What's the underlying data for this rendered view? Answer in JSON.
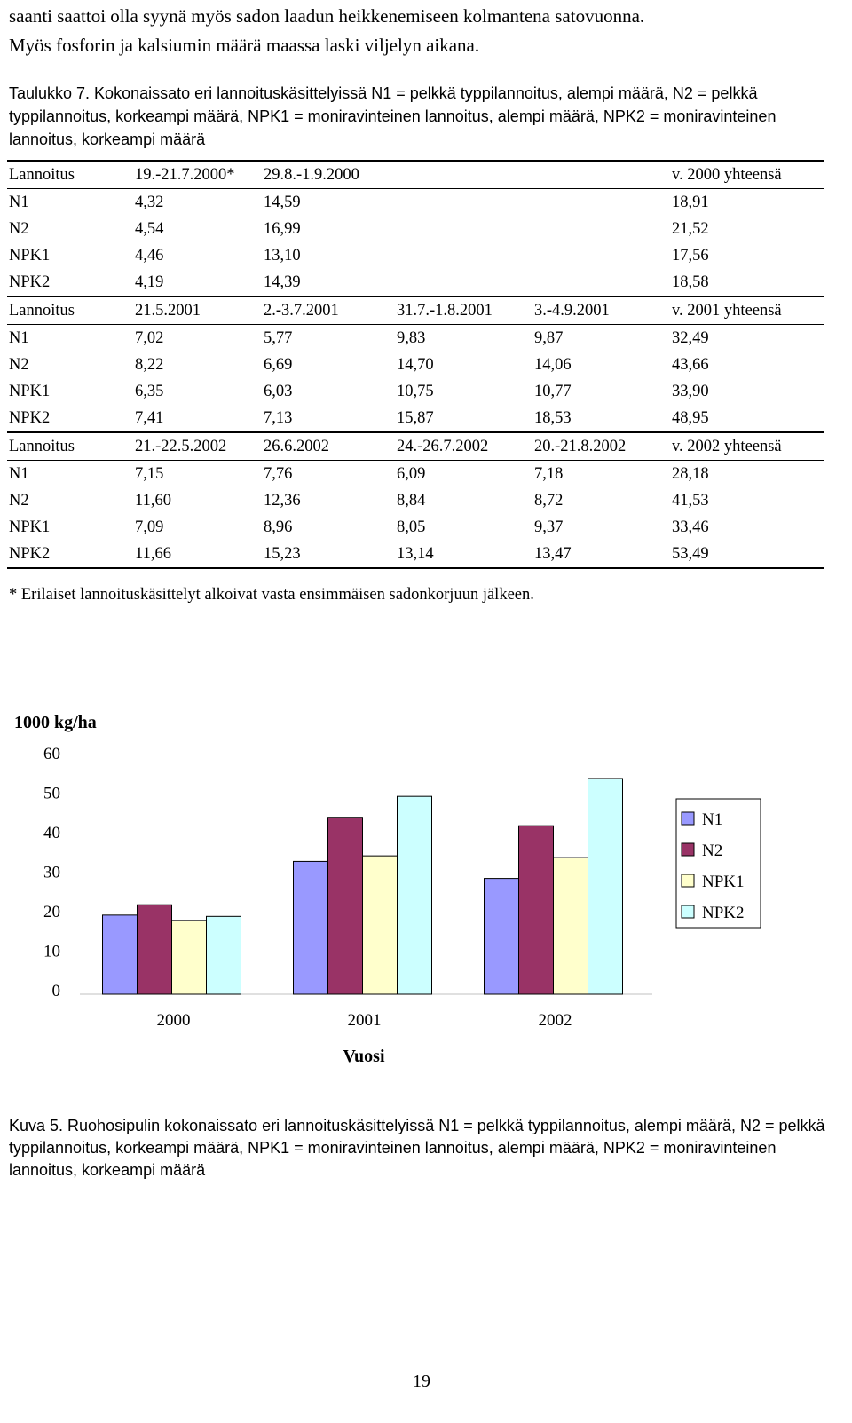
{
  "intro": {
    "line1": "saanti saattoi olla syynä myös sadon laadun heikkenemiseen kolmantena satovuonna.",
    "line2": "Myös fosforin ja kalsiumin määrä maassa laski viljelyn aikana."
  },
  "table_caption": "Taulukko 7. Kokonaissato eri lannoituskäsittelyissä N1 = pelkkä typpilannoitus, alempi määrä, N2 = pelkkä typpilannoitus, korkeampi määrä, NPK1 = moniravinteinen lannoitus, alempi määrä, NPK2 = moniravinteinen lannoitus, korkeampi määrä",
  "table": {
    "blocks": [
      {
        "header": [
          "Lannoitus",
          "19.-21.7.2000*",
          "29.8.-1.9.2000",
          "",
          "",
          "v. 2000 yhteensä"
        ],
        "rows": [
          [
            "N1",
            "4,32",
            "14,59",
            "",
            "",
            "18,91"
          ],
          [
            "N2",
            "4,54",
            "16,99",
            "",
            "",
            "21,52"
          ],
          [
            "NPK1",
            "4,46",
            "13,10",
            "",
            "",
            "17,56"
          ],
          [
            "NPK2",
            "4,19",
            "14,39",
            "",
            "",
            "18,58"
          ]
        ]
      },
      {
        "header": [
          "Lannoitus",
          "21.5.2001",
          "2.-3.7.2001",
          "31.7.-1.8.2001",
          "3.-4.9.2001",
          "v. 2001 yhteensä"
        ],
        "rows": [
          [
            "N1",
            "7,02",
            "5,77",
            "9,83",
            "9,87",
            "32,49"
          ],
          [
            "N2",
            "8,22",
            "6,69",
            "14,70",
            "14,06",
            "43,66"
          ],
          [
            "NPK1",
            "6,35",
            "6,03",
            "10,75",
            "10,77",
            "33,90"
          ],
          [
            "NPK2",
            "7,41",
            "7,13",
            "15,87",
            "18,53",
            "48,95"
          ]
        ]
      },
      {
        "header": [
          "Lannoitus",
          "21.-22.5.2002",
          "26.6.2002",
          "24.-26.7.2002",
          "20.-21.8.2002",
          "v. 2002 yhteensä"
        ],
        "rows": [
          [
            "N1",
            "7,15",
            "7,76",
            "6,09",
            "7,18",
            "28,18"
          ],
          [
            "N2",
            "11,60",
            "12,36",
            "8,84",
            "8,72",
            "41,53"
          ],
          [
            "NPK1",
            "7,09",
            "8,96",
            "8,05",
            "9,37",
            "33,46"
          ],
          [
            "NPK2",
            "11,66",
            "15,23",
            "13,14",
            "13,47",
            "53,49"
          ]
        ]
      }
    ]
  },
  "footnote": "* Erilaiset lannoituskäsittelyt alkoivat vasta ensimmäisen sadonkorjuun jälkeen.",
  "chart_data": {
    "type": "bar",
    "ylabel": "1000 kg/ha",
    "xlabel": "Vuosi",
    "categories": [
      "2000",
      "2001",
      "2002"
    ],
    "ylim": [
      0,
      60
    ],
    "yticks": [
      0,
      10,
      20,
      30,
      40,
      50,
      60
    ],
    "legend_position": "right",
    "series": [
      {
        "name": "N1",
        "color": "#9999ff",
        "values": [
          18.91,
          32.49,
          28.18
        ]
      },
      {
        "name": "N2",
        "color": "#993366",
        "values": [
          21.52,
          43.66,
          41.53
        ]
      },
      {
        "name": "NPK1",
        "color": "#ffffcc",
        "values": [
          17.56,
          33.9,
          33.46
        ]
      },
      {
        "name": "NPK2",
        "color": "#ccffff",
        "values": [
          18.58,
          48.95,
          53.49
        ]
      }
    ]
  },
  "figure_caption": "Kuva 5. Ruohosipulin kokonaissato eri lannoituskäsittelyissä N1 = pelkkä typpilannoitus, alempi määrä, N2 = pelkkä typpilannoitus, korkeampi määrä, NPK1 = moniravinteinen lannoitus, alempi määrä, NPK2 = moniravinteinen lannoitus, korkeampi määrä",
  "page_number": "19"
}
